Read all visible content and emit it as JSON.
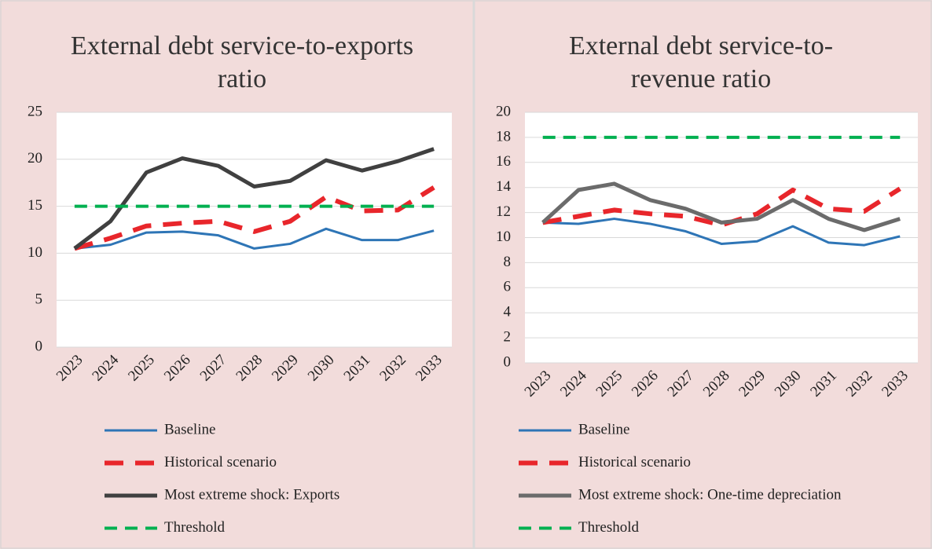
{
  "chart_data": [
    {
      "type": "line",
      "title": "External debt service-to-exports ratio",
      "categories": [
        "2023",
        "2024",
        "2025",
        "2026",
        "2027",
        "2028",
        "2029",
        "2030",
        "2031",
        "2032",
        "2033"
      ],
      "ylim": [
        0,
        25
      ],
      "yticks": [
        0,
        5,
        10,
        15,
        20,
        25
      ],
      "grid": true,
      "series": [
        {
          "name": "Baseline",
          "color": "#2e75b6",
          "dashed": false,
          "values": [
            10.5,
            10.9,
            12.2,
            12.3,
            11.9,
            10.5,
            11.0,
            12.6,
            11.4,
            11.4,
            12.4
          ]
        },
        {
          "name": "Historical scenario",
          "color": "#e8262b",
          "dashed": true,
          "values": [
            10.5,
            11.6,
            12.9,
            13.2,
            13.4,
            12.3,
            13.4,
            16.0,
            14.5,
            14.6,
            17.0
          ]
        },
        {
          "name": "Most extreme shock: Exports",
          "color": "#404040",
          "dashed": false,
          "values": [
            10.5,
            13.4,
            18.6,
            20.1,
            19.3,
            17.1,
            17.7,
            19.9,
            18.8,
            19.8,
            21.1
          ]
        },
        {
          "name": "Threshold",
          "color": "#00b050",
          "dashed": true,
          "values": [
            15,
            15,
            15,
            15,
            15,
            15,
            15,
            15,
            15,
            15,
            15
          ]
        }
      ]
    },
    {
      "type": "line",
      "title": "External debt service-to-revenue ratio",
      "categories": [
        "2023",
        "2024",
        "2025",
        "2026",
        "2027",
        "2028",
        "2029",
        "2030",
        "2031",
        "2032",
        "2033"
      ],
      "ylim": [
        0,
        20
      ],
      "yticks": [
        0,
        2,
        4,
        6,
        8,
        10,
        12,
        14,
        16,
        18,
        20
      ],
      "grid": true,
      "series": [
        {
          "name": "Baseline",
          "color": "#2e75b6",
          "dashed": false,
          "values": [
            11.2,
            11.1,
            11.5,
            11.1,
            10.5,
            9.5,
            9.7,
            10.9,
            9.6,
            9.4,
            10.1
          ]
        },
        {
          "name": "Historical scenario",
          "color": "#e8262b",
          "dashed": true,
          "values": [
            11.2,
            11.7,
            12.2,
            11.9,
            11.7,
            11.0,
            11.9,
            13.8,
            12.3,
            12.1,
            13.9
          ]
        },
        {
          "name": "Most extreme shock: One-time depreciation",
          "color": "#6b6b6b",
          "dashed": false,
          "values": [
            11.2,
            13.8,
            14.3,
            13.0,
            12.3,
            11.2,
            11.5,
            13.0,
            11.5,
            10.6,
            11.5
          ]
        },
        {
          "name": "Threshold",
          "color": "#00b050",
          "dashed": true,
          "values": [
            18,
            18,
            18,
            18,
            18,
            18,
            18,
            18,
            18,
            18,
            18
          ]
        }
      ]
    }
  ]
}
